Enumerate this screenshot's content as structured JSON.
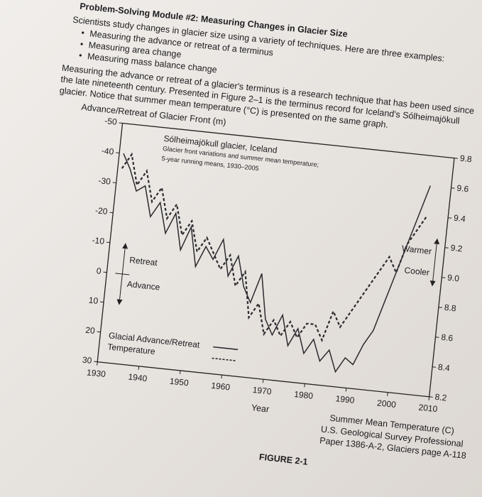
{
  "document": {
    "title": "Problem-Solving Module #2: Measuring Changes in Glacier Size",
    "intro": "Scientists study changes in glacier size using a variety of techniques. Here are three examples:",
    "bullets": [
      "Measuring the advance or retreat of a terminus",
      "Measuring area change",
      "Measuring mass balance change"
    ],
    "paragraph": [
      "Measuring the advance or retreat of a glacier's terminus is a research technique that has been used since",
      "the late nineteenth century. Presented in Figure 2–1 is the terminus record for Iceland's Sólheimajökull",
      "glacier. Notice that summer mean temperature (°C) is presented on the same graph."
    ],
    "source": [
      "U.S. Geological Survey Professional",
      "Paper 1386-A-2, Glaciers page A-118"
    ]
  },
  "chart_data": {
    "type": "line",
    "title": "FIGURE 2-1",
    "notes": [
      "Sólheimajökull glacier, Iceland",
      "Glacier front variations and summer mean temperature;",
      "5-year running means, 1930–2005"
    ],
    "annotations": [
      "Retreat",
      "Advance",
      "Warmer",
      "Cooler"
    ],
    "xlabel": "Year",
    "ylabel": "Advance/Retreat of Glacier Front (m)",
    "y2label": "Summer Mean Temperature (C)",
    "x": [
      1931,
      1933,
      1935,
      1937,
      1939,
      1941,
      1943,
      1945,
      1947,
      1949,
      1951,
      1953,
      1955,
      1957,
      1959,
      1961,
      1963,
      1965,
      1967,
      1969,
      1971,
      1973,
      1975,
      1977,
      1979,
      1981,
      1983,
      1985,
      1987,
      1989,
      1991,
      1993,
      1995,
      1997,
      1999,
      2001,
      2003,
      2005
    ],
    "xlim": [
      1930,
      2010
    ],
    "xticks": [
      1930,
      1940,
      1950,
      1960,
      1970,
      1980,
      1990,
      2000,
      2010
    ],
    "ylim": [
      30,
      -50
    ],
    "yticks": [
      -50,
      -40,
      -30,
      -20,
      -10,
      0,
      10,
      20,
      30
    ],
    "y2lim": [
      8.2,
      9.8
    ],
    "y2ticks": [
      8.2,
      8.4,
      8.6,
      8.8,
      {
        "value": 9,
        "label": "9.0"
      },
      9.2,
      9.4,
      9.6,
      9.8
    ],
    "series": [
      {
        "name": "Glacial Advance/Retreat",
        "color": "#2a2a2e",
        "line_style": "solid",
        "values": [
          -40,
          -35,
          -28,
          -30,
          -20,
          -25,
          -15,
          -22,
          -10,
          -18,
          -5,
          -12,
          -8,
          -15,
          -3,
          -10,
          0,
          5,
          -5,
          10,
          15,
          8,
          18,
          12,
          20,
          15,
          22,
          18,
          25,
          20,
          22,
          15,
          10,
          0,
          -10,
          -20,
          -30,
          -40
        ]
      },
      {
        "name": "Temperature",
        "color": "#2a2a2e",
        "line_style": "dashed",
        "axis": "y2",
        "values": [
          9.5,
          9.6,
          9.4,
          9.5,
          9.3,
          9.4,
          9.2,
          9.3,
          9.1,
          9.2,
          9.0,
          9.1,
          9.0,
          8.9,
          9.0,
          8.8,
          8.9,
          8.6,
          8.7,
          8.5,
          8.6,
          8.5,
          8.6,
          8.5,
          8.6,
          8.6,
          8.5,
          8.7,
          8.6,
          8.7,
          8.8,
          8.9,
          9.0,
          9.1,
          9.0,
          9.2,
          9.3,
          9.4
        ]
      }
    ]
  }
}
